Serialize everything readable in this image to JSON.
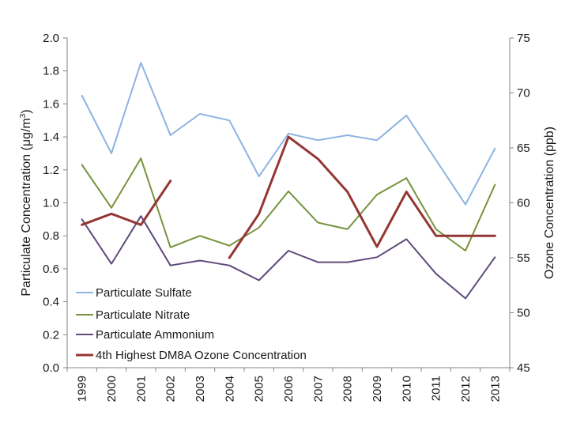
{
  "chart_data": {
    "type": "line",
    "categories": [
      "1999",
      "2000",
      "2001",
      "2002",
      "2003",
      "2004",
      "2005",
      "2006",
      "2007",
      "2008",
      "2009",
      "2010",
      "2011",
      "2012",
      "2013"
    ],
    "left_axis": {
      "label_prefix": "Particulate Concentration (",
      "label_unit_greek": "μ",
      "label_unit_rest": "g/m",
      "label_superscript": "3",
      "label_suffix": ")",
      "ylim": [
        0.0,
        2.0
      ],
      "ticks": [
        "0.0",
        "0.2",
        "0.4",
        "0.6",
        "0.8",
        "1.0",
        "1.2",
        "1.4",
        "1.6",
        "1.8",
        "2.0"
      ]
    },
    "right_axis": {
      "label": "Ozone Concentration (ppb)",
      "ylim": [
        45,
        75
      ],
      "ticks": [
        "45",
        "50",
        "55",
        "60",
        "65",
        "70",
        "75"
      ]
    },
    "series": [
      {
        "name": "Particulate Sulfate",
        "axis": "left",
        "color": "#8DB3E2",
        "values": [
          1.65,
          1.3,
          1.85,
          1.41,
          1.54,
          1.5,
          1.16,
          1.42,
          1.38,
          1.41,
          1.38,
          1.53,
          1.26,
          0.99,
          1.33
        ]
      },
      {
        "name": "Particulate Nitrate",
        "axis": "left",
        "color": "#77933C",
        "values": [
          1.23,
          0.97,
          1.27,
          0.73,
          0.8,
          0.74,
          0.85,
          1.07,
          0.88,
          0.84,
          1.05,
          1.15,
          0.84,
          0.71,
          1.11
        ]
      },
      {
        "name": "Particulate Ammonium",
        "axis": "left",
        "color": "#604A7B",
        "values": [
          0.9,
          0.63,
          0.92,
          0.62,
          0.65,
          0.62,
          0.53,
          0.71,
          0.64,
          0.64,
          0.67,
          0.78,
          0.57,
          0.42,
          0.67
        ]
      },
      {
        "name": "4th Highest DM8A Ozone Concentration",
        "axis": "right",
        "color": "#943634",
        "values": [
          58,
          59,
          58,
          62,
          null,
          55,
          59,
          66,
          64,
          61,
          56,
          61,
          57,
          57,
          57
        ]
      }
    ],
    "legend_position": "lower-left"
  }
}
